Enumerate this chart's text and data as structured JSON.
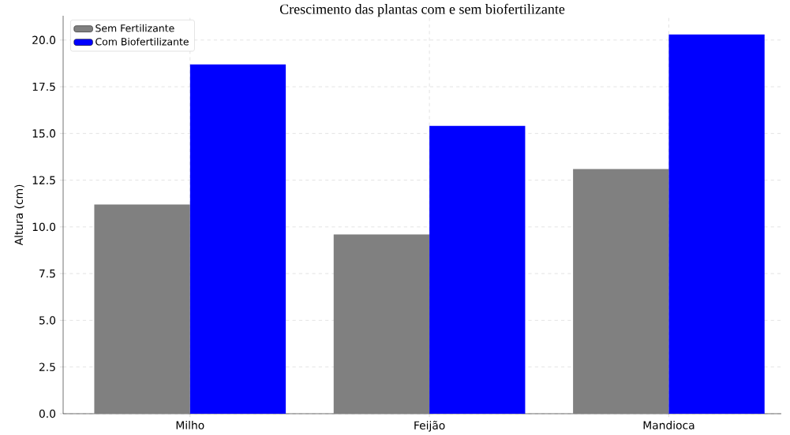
{
  "chart_data": {
    "type": "bar",
    "title": "Crescimento das plantas com e sem biofertilizante",
    "ylabel": "Altura (cm)",
    "categories": [
      "Milho",
      "Feijão",
      "Mandioca"
    ],
    "series": [
      {
        "name": "Sem Fertilizante",
        "color": "#808080",
        "values": [
          11.2,
          9.6,
          13.1
        ]
      },
      {
        "name": "Com Biofertilizante",
        "color": "#0000ff",
        "values": [
          18.7,
          15.4,
          20.3
        ]
      }
    ],
    "ylim": [
      0,
      21.3
    ],
    "yticks": [
      {
        "value": 0,
        "label": "0.0"
      },
      {
        "value": 2.5,
        "label": "2.5"
      },
      {
        "value": 5,
        "label": "5.0"
      },
      {
        "value": 7.5,
        "label": "7.5"
      },
      {
        "value": 10,
        "label": "10.0"
      },
      {
        "value": 12.5,
        "label": "12.5"
      },
      {
        "value": 15,
        "label": "15.0"
      },
      {
        "value": 17.5,
        "label": "17.5"
      },
      {
        "value": 20,
        "label": "20.0"
      }
    ],
    "grid": true,
    "legend": "top left"
  }
}
